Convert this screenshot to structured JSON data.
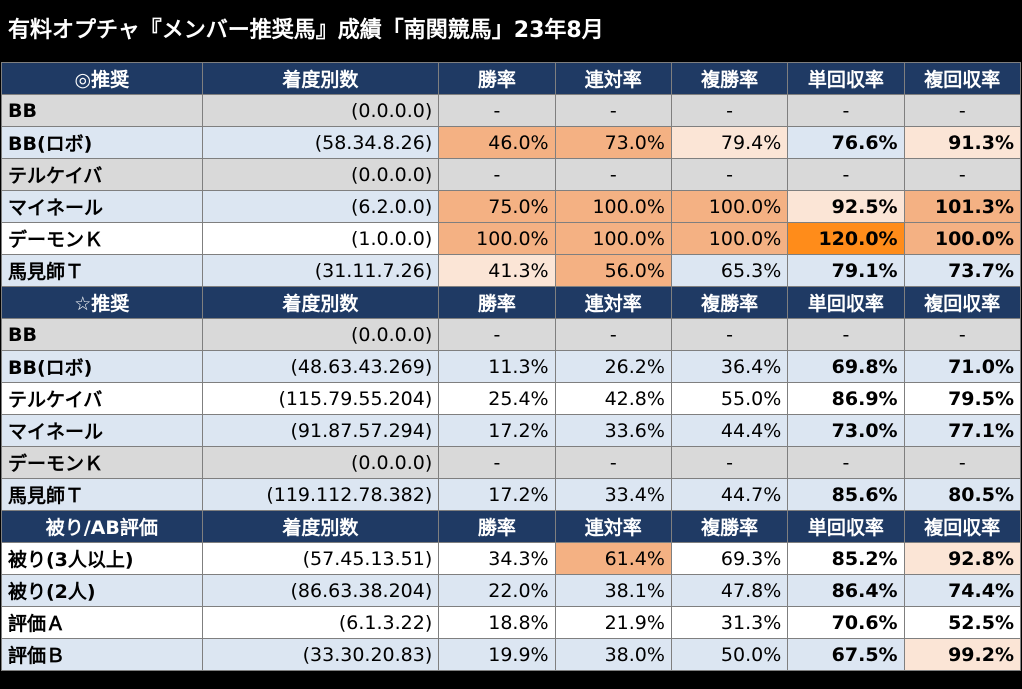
{
  "title": "有料オプチャ『メンバー推奨馬』成績「南関競馬」23年8月",
  "colors": {
    "header_bg": "#1f3a64",
    "gray_row": "#d9d9d9",
    "blue_row": "#dce6f2",
    "highlight_mid": "#f4b183",
    "highlight_light": "#fbe5d6",
    "highlight_strong": "#ff8c1a"
  },
  "sections": [
    {
      "label": "◎推奨",
      "columns": [
        "着度別数",
        "勝率",
        "連対率",
        "複勝率",
        "単回収率",
        "複回収率"
      ],
      "rows": [
        {
          "name": "BB",
          "record": "(0.0.0.0)",
          "win": "-",
          "place2": "-",
          "show": "-",
          "win_return": "-",
          "show_return": "-"
        },
        {
          "name": "BB(ロボ)",
          "record": "(58.34.8.26)",
          "win": "46.0%",
          "place2": "73.0%",
          "show": "79.4%",
          "win_return": "76.6%",
          "show_return": "91.3%"
        },
        {
          "name": "テルケイバ",
          "record": "(0.0.0.0)",
          "win": "-",
          "place2": "-",
          "show": "-",
          "win_return": "-",
          "show_return": "-"
        },
        {
          "name": "マイネール",
          "record": "(6.2.0.0)",
          "win": "75.0%",
          "place2": "100.0%",
          "show": "100.0%",
          "win_return": "92.5%",
          "show_return": "101.3%"
        },
        {
          "name": "デーモンＫ",
          "record": "(1.0.0.0)",
          "win": "100.0%",
          "place2": "100.0%",
          "show": "100.0%",
          "win_return": "120.0%",
          "show_return": "100.0%"
        },
        {
          "name": "馬見師Ｔ",
          "record": "(31.11.7.26)",
          "win": "41.3%",
          "place2": "56.0%",
          "show": "65.3%",
          "win_return": "79.1%",
          "show_return": "73.7%"
        }
      ]
    },
    {
      "label": "☆推奨",
      "columns": [
        "着度別数",
        "勝率",
        "連対率",
        "複勝率",
        "単回収率",
        "複回収率"
      ],
      "rows": [
        {
          "name": "BB",
          "record": "(0.0.0.0)",
          "win": "-",
          "place2": "-",
          "show": "-",
          "win_return": "-",
          "show_return": "-"
        },
        {
          "name": "BB(ロボ)",
          "record": "(48.63.43.269)",
          "win": "11.3%",
          "place2": "26.2%",
          "show": "36.4%",
          "win_return": "69.8%",
          "show_return": "71.0%"
        },
        {
          "name": "テルケイバ",
          "record": "(115.79.55.204)",
          "win": "25.4%",
          "place2": "42.8%",
          "show": "55.0%",
          "win_return": "86.9%",
          "show_return": "79.5%"
        },
        {
          "name": "マイネール",
          "record": "(91.87.57.294)",
          "win": "17.2%",
          "place2": "33.6%",
          "show": "44.4%",
          "win_return": "73.0%",
          "show_return": "77.1%"
        },
        {
          "name": "デーモンＫ",
          "record": "(0.0.0.0)",
          "win": "-",
          "place2": "-",
          "show": "-",
          "win_return": "-",
          "show_return": "-"
        },
        {
          "name": "馬見師Ｔ",
          "record": "(119.112.78.382)",
          "win": "17.2%",
          "place2": "33.4%",
          "show": "44.7%",
          "win_return": "85.6%",
          "show_return": "80.5%"
        }
      ]
    },
    {
      "label": "被り/AB評価",
      "columns": [
        "着度別数",
        "勝率",
        "連対率",
        "複勝率",
        "単回収率",
        "複回収率"
      ],
      "rows": [
        {
          "name": "被り(3人以上)",
          "record": "(57.45.13.51)",
          "win": "34.3%",
          "place2": "61.4%",
          "show": "69.3%",
          "win_return": "85.2%",
          "show_return": "92.8%"
        },
        {
          "name": "被り(2人)",
          "record": "(86.63.38.204)",
          "win": "22.0%",
          "place2": "38.1%",
          "show": "47.8%",
          "win_return": "86.4%",
          "show_return": "74.4%"
        },
        {
          "name": "評価Ａ",
          "record": "(6.1.3.22)",
          "win": "18.8%",
          "place2": "21.9%",
          "show": "31.3%",
          "win_return": "70.6%",
          "show_return": "52.5%"
        },
        {
          "name": "評価Ｂ",
          "record": "(33.30.20.83)",
          "win": "19.9%",
          "place2": "38.0%",
          "show": "50.0%",
          "win_return": "67.5%",
          "show_return": "99.2%"
        }
      ]
    }
  ]
}
